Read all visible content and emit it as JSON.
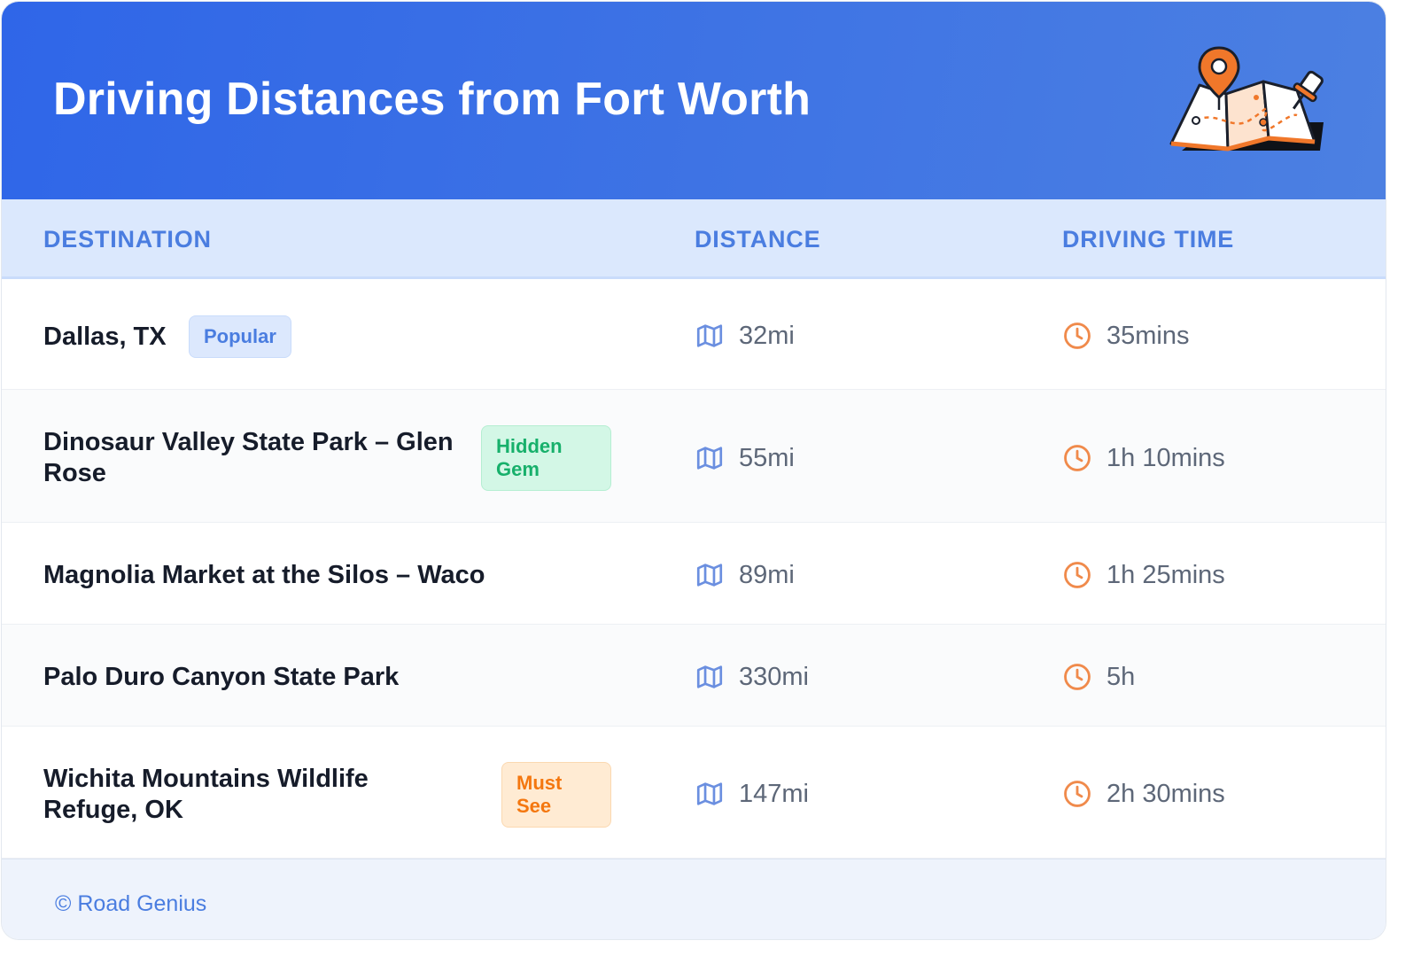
{
  "header": {
    "title": "Driving Distances from Fort Worth",
    "illustration_icon": "map-with-pins-icon"
  },
  "columns": {
    "destination": "DESTINATION",
    "distance": "DISTANCE",
    "driving_time": "DRIVING TIME"
  },
  "rows": [
    {
      "destination": "Dallas, TX",
      "badge": "Popular",
      "badge_color": "#4a7de0",
      "distance": "32mi",
      "time": "35mins"
    },
    {
      "destination": "Dinosaur Valley State Park – Glen Rose",
      "badge": "Hidden Gem",
      "badge_color": "#17b06b",
      "distance": "55mi",
      "time": "1h 10mins"
    },
    {
      "destination": "Magnolia Market at the Silos – Waco",
      "badge": "",
      "distance": "89mi",
      "time": "1h 25mins"
    },
    {
      "destination": "Palo Duro Canyon State Park",
      "badge": "",
      "distance": "330mi",
      "time": "5h"
    },
    {
      "destination": "Wichita Mountains Wildlife Refuge, OK",
      "badge": "Must See",
      "badge_color": "#f4770f",
      "distance": "147mi",
      "time": "2h 30mins"
    }
  ],
  "icons": {
    "distance": "map-icon",
    "time": "clock-icon"
  },
  "colors": {
    "header_accent": "#2f66e8",
    "map_icon": "#6b8fe0",
    "clock_icon": "#f08a4b"
  },
  "footer": {
    "credit": "© Road Genius"
  }
}
